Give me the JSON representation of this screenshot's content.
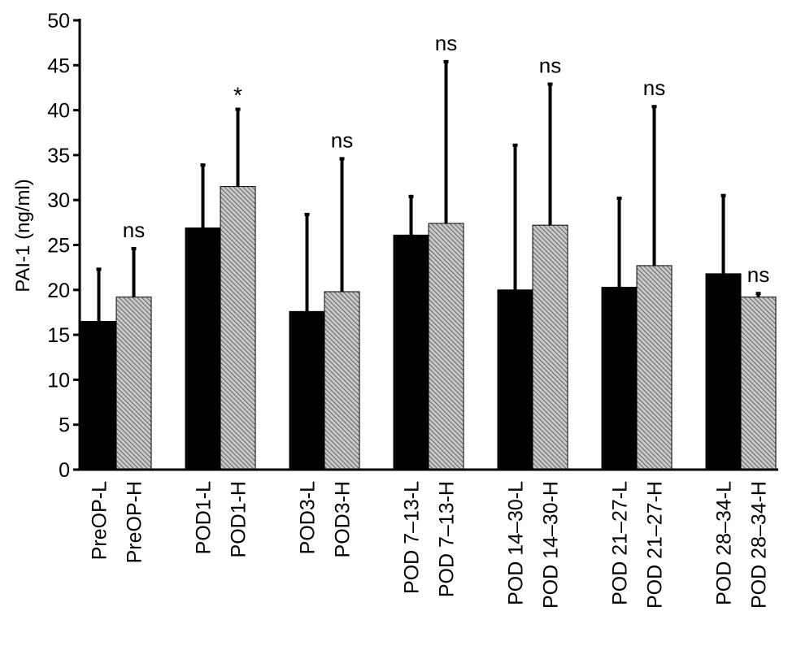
{
  "chart_data": {
    "type": "bar",
    "title": "",
    "xlabel": "",
    "ylabel": "PAI-1 (ng/ml)",
    "ylim": [
      0,
      50
    ],
    "yticks": [
      0,
      5,
      10,
      15,
      20,
      25,
      30,
      35,
      40,
      45,
      50
    ],
    "grid": false,
    "legend": "none",
    "categories": [
      "PreOP-L",
      "PreOP-H",
      "POD1-L",
      "POD1-H",
      "POD3-L",
      "POD3-H",
      "POD 7–13-L",
      "POD 7–13-H",
      "POD 14–30-L",
      "POD 14–30-H",
      "POD 21–27-L",
      "POD 21–27-H",
      "POD 28–34-L",
      "POD 28–34-H"
    ],
    "values": [
      16.5,
      19.2,
      26.9,
      31.5,
      17.6,
      19.8,
      26.1,
      27.4,
      20.0,
      27.2,
      20.3,
      22.7,
      21.8,
      19.2
    ],
    "error_upper": [
      22.3,
      24.6,
      33.9,
      40.1,
      28.4,
      34.6,
      30.4,
      45.4,
      36.1,
      42.9,
      30.2,
      40.4,
      30.5,
      19.6
    ],
    "groups": [
      {
        "L": 0,
        "H": 1,
        "annotation": "ns"
      },
      {
        "L": 2,
        "H": 3,
        "annotation": "*"
      },
      {
        "L": 4,
        "H": 5,
        "annotation": "ns"
      },
      {
        "L": 6,
        "H": 7,
        "annotation": "ns"
      },
      {
        "L": 8,
        "H": 9,
        "annotation": "ns"
      },
      {
        "L": 10,
        "H": 11,
        "annotation": "ns"
      },
      {
        "L": 12,
        "H": 13,
        "annotation": "ns"
      }
    ],
    "colors": {
      "L": "#000000",
      "H_fill": "#c8c8c8",
      "H_hatch": "#4a4a4a",
      "axis": "#000000"
    }
  }
}
